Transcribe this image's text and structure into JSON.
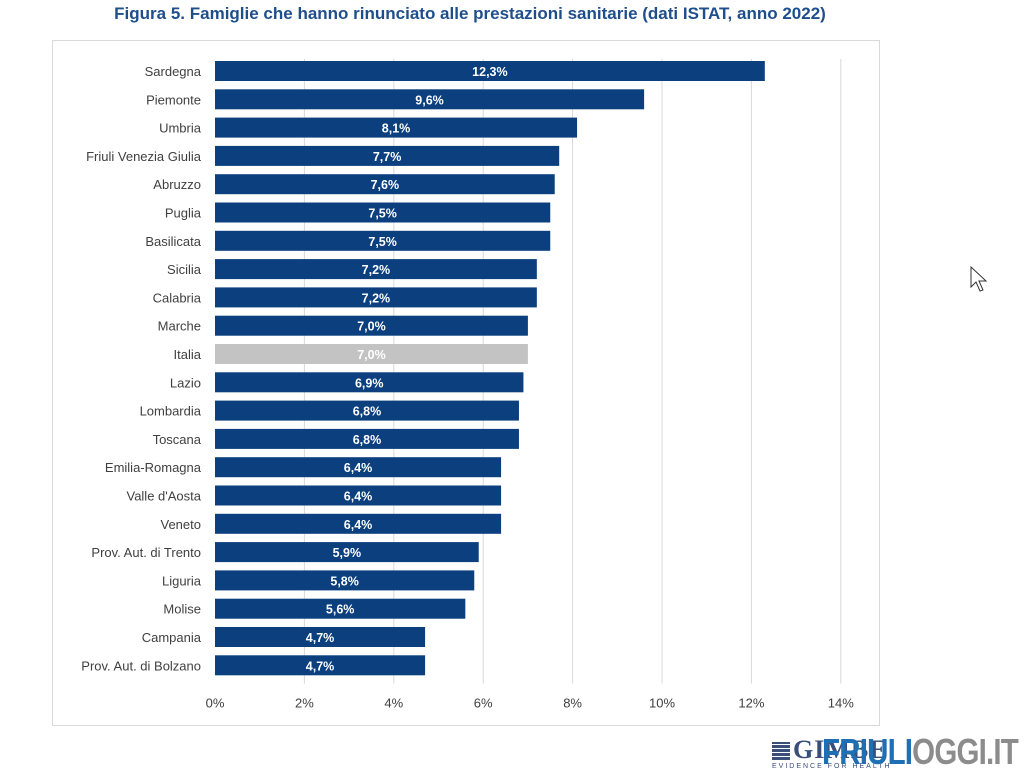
{
  "chart_data": {
    "type": "bar",
    "orientation": "horizontal",
    "title": "Figura 5. Famiglie che hanno rinunciato alle prestazioni sanitarie (dati ISTAT, anno 2022)",
    "xlabel": "",
    "ylabel": "",
    "xlim": [
      0,
      14
    ],
    "xticks": [
      0,
      2,
      4,
      6,
      8,
      10,
      12,
      14
    ],
    "xtick_labels": [
      "0%",
      "2%",
      "4%",
      "6%",
      "8%",
      "10%",
      "12%",
      "14%"
    ],
    "grid": "vertical",
    "legend": "none",
    "categories": [
      "Sardegna",
      "Piemonte",
      "Umbria",
      "Friuli Venezia Giulia",
      "Abruzzo",
      "Puglia",
      "Basilicata",
      "Sicilia",
      "Calabria",
      "Marche",
      "Italia",
      "Lazio",
      "Lombardia",
      "Toscana",
      "Emilia-Romagna",
      "Valle d'Aosta",
      "Veneto",
      "Prov. Aut. di Trento",
      "Liguria",
      "Molise",
      "Campania",
      "Prov. Aut. di Bolzano"
    ],
    "values": [
      12.3,
      9.6,
      8.1,
      7.7,
      7.6,
      7.5,
      7.5,
      7.2,
      7.2,
      7.0,
      7.0,
      6.9,
      6.8,
      6.8,
      6.4,
      6.4,
      6.4,
      5.9,
      5.8,
      5.6,
      4.7,
      4.7
    ],
    "data_labels": [
      "12,3%",
      "9,6%",
      "8,1%",
      "7,7%",
      "7,6%",
      "7,5%",
      "7,5%",
      "7,2%",
      "7,2%",
      "7,0%",
      "7,0%",
      "6,9%",
      "6,8%",
      "6,8%",
      "6,4%",
      "6,4%",
      "6,4%",
      "5,9%",
      "5,8%",
      "5,6%",
      "4,7%",
      "4,7%"
    ],
    "highlight_category": "Italia",
    "colors": {
      "bar": "#0b3f7e",
      "highlight": "#c3c3c3",
      "grid": "#d9d9d9"
    }
  },
  "watermark": {
    "gimbe": "GIMBE",
    "gimbe_sub": "EVIDENCE FOR HEALTH",
    "friuli_a": "FRIULI",
    "friuli_b": "OGGI.IT"
  }
}
